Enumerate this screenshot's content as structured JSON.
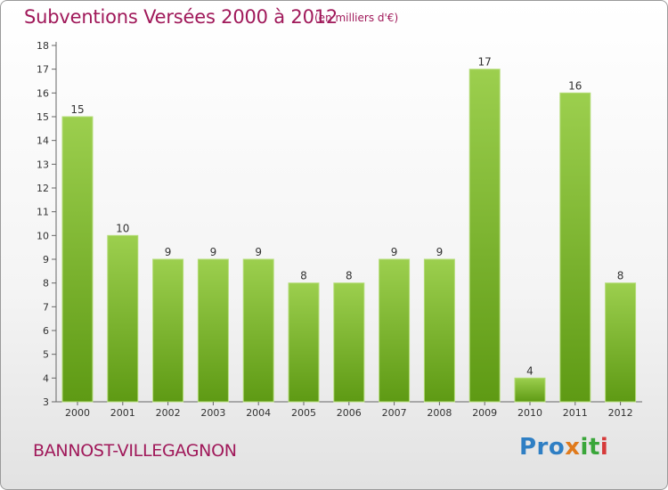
{
  "header": {
    "title": "Subventions Versées 2000 à 2012",
    "unit": "(en milliers d'€)"
  },
  "footer": {
    "commune": "BANNOST-VILLEGAGNON",
    "logo_parts": [
      "Pro",
      "x",
      "it",
      "i"
    ]
  },
  "colors": {
    "title": "#a0195a",
    "bar_top": "#9ccf4e",
    "bar_bottom": "#5e9a14"
  },
  "chart_data": {
    "type": "bar",
    "categories": [
      "2000",
      "2001",
      "2002",
      "2003",
      "2004",
      "2005",
      "2006",
      "2007",
      "2008",
      "2009",
      "2010",
      "2011",
      "2012"
    ],
    "values": [
      15,
      10,
      9,
      9,
      9,
      8,
      8,
      9,
      9,
      17,
      4,
      16,
      8
    ],
    "value_labels": [
      "15",
      "10",
      "9",
      "9",
      "9",
      "8",
      "8",
      "9",
      "9",
      "17",
      "4",
      "16",
      "8"
    ],
    "yticks": [
      3,
      4,
      5,
      6,
      7,
      8,
      9,
      10,
      11,
      12,
      13,
      14,
      15,
      16,
      17,
      18
    ],
    "ylim": [
      3,
      18
    ],
    "grid": false,
    "legend": "none"
  }
}
